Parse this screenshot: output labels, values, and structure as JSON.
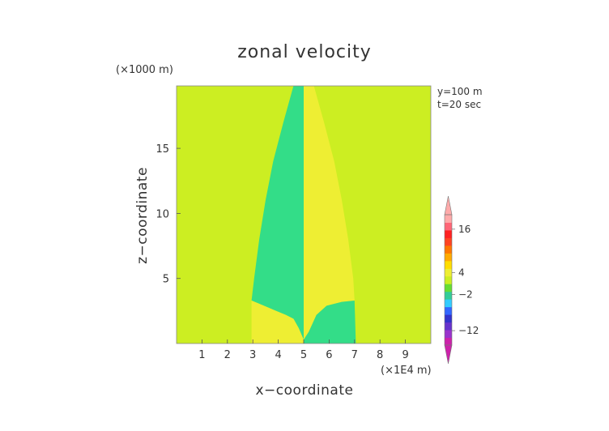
{
  "chart_data": {
    "type": "heatmap",
    "title": "zonal velocity",
    "xlabel": "x−coordinate",
    "ylabel": "z−coordinate",
    "x_unit": "(×1E4 m)",
    "y_unit": "(×1000 m)",
    "annotations": [
      "y=100 m",
      "t=20 sec"
    ],
    "x_ticks": [
      1,
      2,
      3,
      4,
      5,
      6,
      7,
      8,
      9
    ],
    "y_ticks": [
      5,
      10,
      15
    ],
    "xlim": [
      0,
      10
    ],
    "ylim": [
      0,
      19.8
    ],
    "colorbar": {
      "labels": [
        "16",
        "4",
        "−2",
        "−12"
      ],
      "label_values": [
        16,
        4,
        -2,
        -12
      ],
      "range": [
        -16,
        20
      ],
      "colors": [
        "#cc22aa",
        "#9933cc",
        "#6633cc",
        "#3333cc",
        "#3366ff",
        "#33ccff",
        "#33cc99",
        "#66dd33",
        "#ccee22",
        "#eeee33",
        "#ffdd00",
        "#ffaa00",
        "#ff7700",
        "#ff4422",
        "#ff2222",
        "#ff6677",
        "#ffaaaa"
      ]
    },
    "regions": {
      "background_color": "#ccee22",
      "negative_color": "#33dd88",
      "positive_color": "#eeee33",
      "left_lobe_boundary": [
        [
          4.6,
          19.8
        ],
        [
          4.2,
          17
        ],
        [
          3.8,
          14
        ],
        [
          3.5,
          11
        ],
        [
          3.25,
          8
        ],
        [
          3.05,
          5
        ],
        [
          2.95,
          3.3
        ],
        [
          3.2,
          3.1
        ],
        [
          3.8,
          2.6
        ],
        [
          4.3,
          2.2
        ],
        [
          4.6,
          1.9
        ],
        [
          4.8,
          1.2
        ],
        [
          5.0,
          0.3
        ],
        [
          5.0,
          19.8
        ]
      ],
      "left_bottom_boundary": [
        [
          2.95,
          0
        ],
        [
          2.95,
          3.3
        ],
        [
          3.2,
          3.1
        ],
        [
          3.8,
          2.6
        ],
        [
          4.3,
          2.2
        ],
        [
          4.6,
          1.9
        ],
        [
          4.8,
          1.2
        ],
        [
          5.0,
          0.3
        ],
        [
          5.0,
          0
        ]
      ],
      "right_lobe_boundary": [
        [
          5.0,
          19.8
        ],
        [
          5.0,
          0.3
        ],
        [
          5.2,
          0.9
        ],
        [
          5.5,
          2.2
        ],
        [
          5.9,
          2.9
        ],
        [
          6.5,
          3.2
        ],
        [
          7.0,
          3.3
        ],
        [
          6.95,
          5
        ],
        [
          6.75,
          8
        ],
        [
          6.5,
          11
        ],
        [
          6.2,
          14
        ],
        [
          5.8,
          17
        ],
        [
          5.4,
          19.8
        ]
      ],
      "right_bottom_boundary": [
        [
          5.0,
          0
        ],
        [
          5.0,
          0.3
        ],
        [
          5.2,
          0.9
        ],
        [
          5.5,
          2.2
        ],
        [
          5.9,
          2.9
        ],
        [
          6.5,
          3.2
        ],
        [
          7.0,
          3.3
        ],
        [
          7.05,
          0
        ]
      ]
    }
  }
}
